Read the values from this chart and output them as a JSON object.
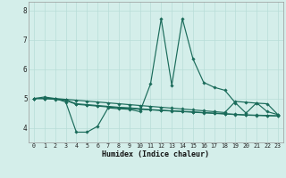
{
  "title": "",
  "xlabel": "Humidex (Indice chaleur)",
  "x_values": [
    0,
    1,
    2,
    3,
    4,
    5,
    6,
    7,
    8,
    9,
    10,
    11,
    12,
    13,
    14,
    15,
    16,
    17,
    18,
    19,
    20,
    21,
    22,
    23
  ],
  "line1": [
    5.0,
    5.05,
    5.0,
    4.88,
    3.85,
    3.85,
    4.05,
    4.68,
    4.65,
    4.63,
    4.55,
    5.5,
    7.72,
    5.45,
    7.72,
    6.35,
    5.55,
    5.38,
    5.28,
    4.85,
    4.5,
    4.85,
    4.55,
    4.45
  ],
  "flat1": [
    5.0,
    5.0,
    5.0,
    4.97,
    4.94,
    4.91,
    4.88,
    4.85,
    4.82,
    4.79,
    4.76,
    4.73,
    4.7,
    4.67,
    4.64,
    4.61,
    4.58,
    4.55,
    4.52,
    4.9,
    4.87,
    4.84,
    4.82,
    4.45
  ],
  "flat2": [
    5.0,
    5.0,
    4.98,
    4.95,
    4.82,
    4.79,
    4.76,
    4.73,
    4.7,
    4.68,
    4.65,
    4.62,
    4.6,
    4.58,
    4.56,
    4.54,
    4.52,
    4.5,
    4.48,
    4.46,
    4.44,
    4.43,
    4.42,
    4.41
  ],
  "flat3": [
    5.0,
    5.0,
    4.97,
    4.93,
    4.8,
    4.77,
    4.74,
    4.71,
    4.68,
    4.66,
    4.63,
    4.61,
    4.59,
    4.57,
    4.55,
    4.53,
    4.51,
    4.49,
    4.47,
    4.45,
    4.43,
    4.42,
    4.41,
    4.4
  ],
  "line_color": "#1a6b5a",
  "bg_color": "#d4eeea",
  "grid_color": "#b8ddd8",
  "ylim": [
    3.5,
    8.3
  ],
  "yticks": [
    4,
    5,
    6,
    7,
    8
  ],
  "xlim": [
    -0.5,
    23.5
  ]
}
